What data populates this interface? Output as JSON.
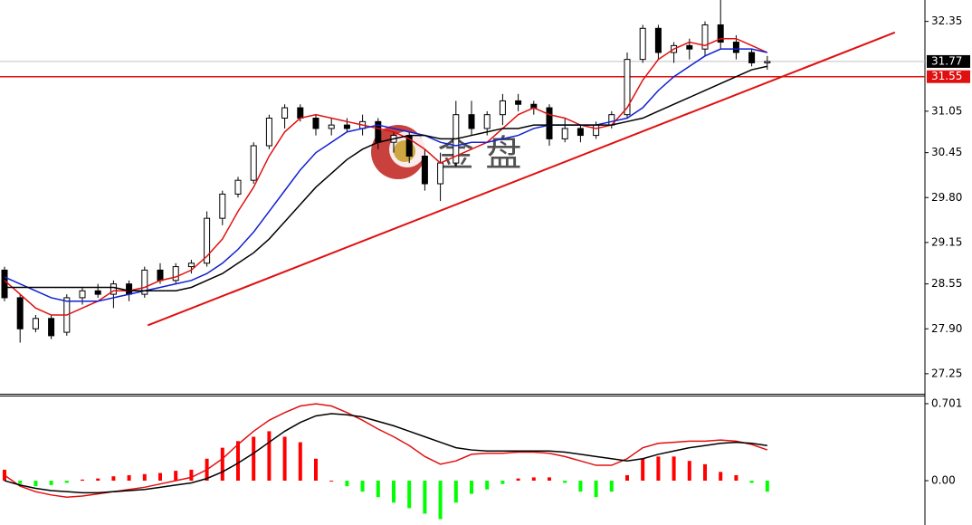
{
  "chart_data": [
    {
      "type": "candlestick",
      "watermark": "金 盘",
      "ohlc": [
        [
          28.75,
          28.8,
          28.3,
          28.35
        ],
        [
          28.35,
          28.4,
          27.7,
          27.9
        ],
        [
          27.9,
          28.1,
          27.85,
          28.05
        ],
        [
          28.05,
          28.1,
          27.75,
          27.8
        ],
        [
          27.85,
          28.4,
          27.8,
          28.35
        ],
        [
          28.35,
          28.5,
          28.25,
          28.45
        ],
        [
          28.45,
          28.55,
          28.35,
          28.4
        ],
        [
          28.4,
          28.6,
          28.2,
          28.55
        ],
        [
          28.55,
          28.6,
          28.3,
          28.4
        ],
        [
          28.4,
          28.8,
          28.35,
          28.75
        ],
        [
          28.75,
          28.85,
          28.55,
          28.6
        ],
        [
          28.6,
          28.85,
          28.55,
          28.8
        ],
        [
          28.8,
          28.9,
          28.7,
          28.85
        ],
        [
          28.85,
          29.6,
          28.8,
          29.5
        ],
        [
          29.5,
          29.9,
          29.4,
          29.85
        ],
        [
          29.85,
          30.1,
          29.8,
          30.05
        ],
        [
          30.05,
          30.6,
          30.0,
          30.55
        ],
        [
          30.55,
          31.0,
          30.5,
          30.95
        ],
        [
          30.95,
          31.15,
          30.8,
          31.1
        ],
        [
          31.1,
          31.15,
          30.9,
          30.95
        ],
        [
          30.95,
          31.0,
          30.7,
          30.8
        ],
        [
          30.8,
          30.95,
          30.7,
          30.85
        ],
        [
          30.85,
          30.95,
          30.75,
          30.8
        ],
        [
          30.8,
          31.0,
          30.7,
          30.9
        ],
        [
          30.9,
          30.95,
          30.5,
          30.6
        ],
        [
          30.6,
          30.75,
          30.45,
          30.7
        ],
        [
          30.7,
          30.75,
          30.3,
          30.4
        ],
        [
          30.4,
          30.5,
          29.9,
          30.0
        ],
        [
          30.0,
          30.45,
          29.75,
          30.3
        ],
        [
          30.3,
          31.2,
          30.25,
          31.0
        ],
        [
          31.0,
          31.2,
          30.7,
          30.8
        ],
        [
          30.8,
          31.05,
          30.7,
          31.0
        ],
        [
          31.0,
          31.3,
          30.85,
          31.2
        ],
        [
          31.2,
          31.3,
          31.05,
          31.15
        ],
        [
          31.15,
          31.2,
          31.0,
          31.1
        ],
        [
          31.1,
          31.15,
          30.55,
          30.65
        ],
        [
          30.65,
          30.95,
          30.6,
          30.8
        ],
        [
          30.8,
          30.85,
          30.6,
          30.7
        ],
        [
          30.7,
          30.9,
          30.65,
          30.85
        ],
        [
          30.85,
          31.05,
          30.8,
          31.0
        ],
        [
          31.0,
          31.9,
          30.95,
          31.8
        ],
        [
          31.8,
          32.3,
          31.75,
          32.25
        ],
        [
          32.25,
          32.3,
          31.8,
          31.9
        ],
        [
          31.9,
          32.05,
          31.75,
          32.0
        ],
        [
          32.0,
          32.1,
          31.8,
          31.95
        ],
        [
          31.95,
          32.35,
          31.85,
          32.3
        ],
        [
          32.3,
          32.7,
          31.95,
          32.05
        ],
        [
          32.05,
          32.15,
          31.8,
          31.9
        ],
        [
          31.9,
          31.95,
          31.7,
          31.75
        ],
        [
          31.75,
          31.85,
          31.65,
          31.77
        ]
      ],
      "lines": [
        {
          "color": "#e01010",
          "values": [
            28.6,
            28.4,
            28.2,
            28.1,
            28.1,
            28.2,
            28.3,
            28.45,
            28.45,
            28.5,
            28.6,
            28.65,
            28.75,
            28.95,
            29.2,
            29.6,
            29.95,
            30.4,
            30.75,
            30.95,
            31.0,
            30.95,
            30.9,
            30.85,
            30.8,
            30.75,
            30.65,
            30.5,
            30.3,
            30.4,
            30.5,
            30.6,
            30.8,
            31.0,
            31.1,
            31.0,
            30.95,
            30.85,
            30.8,
            30.85,
            31.1,
            31.5,
            31.8,
            31.95,
            32.05,
            32.0,
            32.1,
            32.1,
            32.0,
            31.9
          ]
        },
        {
          "color": "#1020d0",
          "values": [
            28.65,
            28.55,
            28.45,
            28.35,
            28.3,
            28.3,
            28.3,
            28.35,
            28.4,
            28.45,
            28.5,
            28.55,
            28.6,
            28.7,
            28.85,
            29.05,
            29.3,
            29.6,
            29.9,
            30.2,
            30.45,
            30.6,
            30.75,
            30.8,
            30.85,
            30.8,
            30.75,
            30.7,
            30.6,
            30.55,
            30.6,
            30.6,
            30.65,
            30.7,
            30.8,
            30.85,
            30.85,
            30.85,
            30.85,
            30.9,
            30.95,
            31.1,
            31.35,
            31.55,
            31.7,
            31.85,
            31.95,
            31.95,
            31.95,
            31.9
          ]
        },
        {
          "color": "#000000",
          "values": [
            28.5,
            28.5,
            28.5,
            28.5,
            28.5,
            28.5,
            28.5,
            28.5,
            28.45,
            28.45,
            28.45,
            28.45,
            28.5,
            28.6,
            28.7,
            28.85,
            29.0,
            29.2,
            29.45,
            29.7,
            29.95,
            30.15,
            30.35,
            30.5,
            30.6,
            30.65,
            30.7,
            30.7,
            30.65,
            30.65,
            30.7,
            30.75,
            30.8,
            30.8,
            30.85,
            30.85,
            30.85,
            30.85,
            30.85,
            30.85,
            30.9,
            30.95,
            31.05,
            31.15,
            31.25,
            31.35,
            31.45,
            31.55,
            31.65,
            31.7
          ]
        }
      ],
      "trendline": {
        "color": "#e01010",
        "start": [
          9.2,
          27.95
        ],
        "end": [
          57.2,
          32.19
        ]
      },
      "level_line": {
        "value": 31.55,
        "label": "31.55",
        "color": "#e01010"
      },
      "price_line": {
        "value": 31.77,
        "label": "31.77",
        "color": "#c0c0c0"
      },
      "ylim": [
        26.96,
        32.66
      ],
      "yticks": [
        {
          "value": 32.35,
          "label": "32.35"
        },
        {
          "value": 31.05,
          "label": "31.05"
        },
        {
          "value": 30.45,
          "label": "30.45"
        },
        {
          "value": 29.8,
          "label": "29.80"
        },
        {
          "value": 29.15,
          "label": "29.15"
        },
        {
          "value": 28.55,
          "label": "28.55"
        },
        {
          "value": 27.9,
          "label": "27.90"
        },
        {
          "value": 27.25,
          "label": "27.25"
        }
      ]
    },
    {
      "type": "macd",
      "histogram": [
        0.1,
        -0.03,
        -0.05,
        -0.04,
        -0.02,
        0.01,
        0.02,
        0.04,
        0.05,
        0.06,
        0.07,
        0.09,
        0.1,
        0.2,
        0.3,
        0.36,
        0.4,
        0.45,
        0.4,
        0.35,
        0.2,
        0.0,
        -0.05,
        -0.1,
        -0.15,
        -0.2,
        -0.25,
        -0.3,
        -0.35,
        -0.2,
        -0.12,
        -0.08,
        -0.03,
        0.02,
        0.03,
        0.03,
        -0.02,
        -0.1,
        -0.15,
        -0.1,
        0.05,
        0.2,
        0.22,
        0.22,
        0.18,
        0.15,
        0.08,
        0.05,
        -0.02,
        -0.1
      ],
      "up_color": "#ff0000",
      "down_color": "#00ff00",
      "lines": [
        {
          "color": "#e01010",
          "values": [
            0.05,
            -0.05,
            -0.1,
            -0.13,
            -0.15,
            -0.14,
            -0.12,
            -0.1,
            -0.08,
            -0.06,
            -0.03,
            0.0,
            0.03,
            0.1,
            0.2,
            0.33,
            0.45,
            0.55,
            0.62,
            0.68,
            0.7,
            0.68,
            0.62,
            0.55,
            0.47,
            0.4,
            0.32,
            0.22,
            0.15,
            0.18,
            0.24,
            0.25,
            0.25,
            0.26,
            0.26,
            0.25,
            0.22,
            0.18,
            0.14,
            0.14,
            0.2,
            0.3,
            0.34,
            0.35,
            0.36,
            0.36,
            0.37,
            0.36,
            0.33,
            0.28
          ]
        },
        {
          "color": "#000000",
          "values": [
            0.0,
            -0.04,
            -0.07,
            -0.09,
            -0.1,
            -0.11,
            -0.11,
            -0.1,
            -0.09,
            -0.08,
            -0.06,
            -0.04,
            -0.02,
            0.02,
            0.08,
            0.16,
            0.25,
            0.35,
            0.45,
            0.53,
            0.59,
            0.61,
            0.6,
            0.58,
            0.54,
            0.5,
            0.45,
            0.4,
            0.35,
            0.3,
            0.28,
            0.27,
            0.27,
            0.27,
            0.27,
            0.27,
            0.26,
            0.24,
            0.22,
            0.2,
            0.18,
            0.2,
            0.24,
            0.27,
            0.3,
            0.32,
            0.34,
            0.35,
            0.34,
            0.32
          ]
        }
      ],
      "ylim": [
        -0.387,
        0.775
      ],
      "yticks": [
        {
          "value": 0.701,
          "label": "0.701"
        },
        {
          "value": 0,
          "label": "0.00"
        }
      ]
    }
  ]
}
